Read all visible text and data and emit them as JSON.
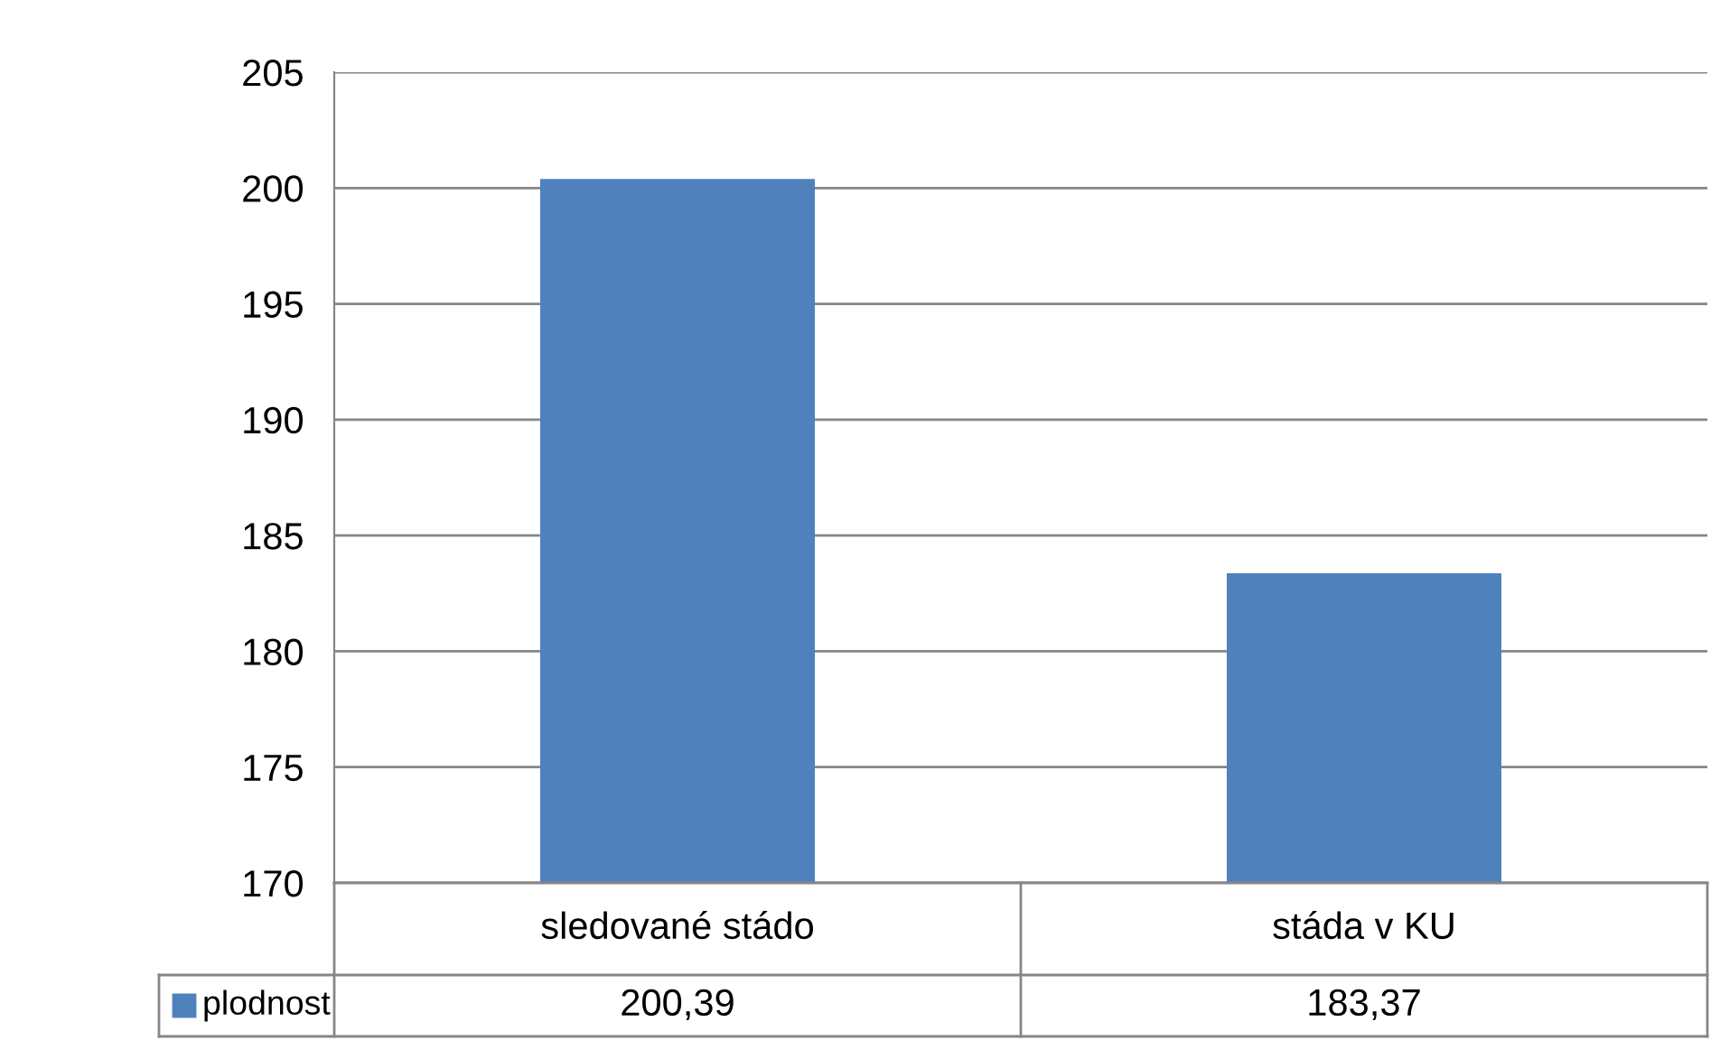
{
  "chart_data": {
    "type": "bar",
    "categories": [
      "sledované stádo",
      "stáda v KU"
    ],
    "series": [
      {
        "name": "plodnost",
        "color": "#4f81bd",
        "values": [
          200.39,
          183.37
        ],
        "value_labels": [
          "200,39",
          "183,37"
        ]
      }
    ],
    "ylim": [
      170,
      205
    ],
    "yticks": [
      170,
      175,
      180,
      185,
      190,
      195,
      200,
      205
    ],
    "grid": "y",
    "legend": "bottom"
  }
}
